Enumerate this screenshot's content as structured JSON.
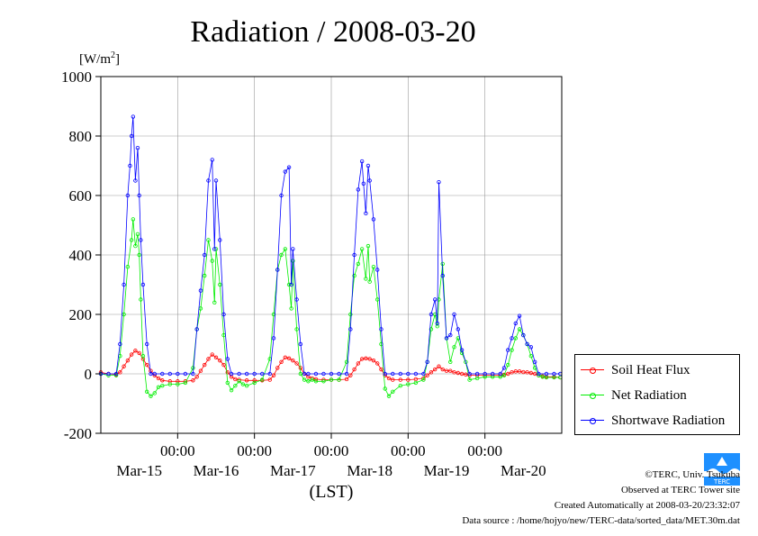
{
  "chart_data": {
    "type": "line",
    "title": "Radiation / 2008-03-20",
    "ylabel_unit": "[W/m",
    "ylabel_sup": "2",
    "ylabel_close": "]",
    "xlabel": "(LST)",
    "ylim": [
      -200,
      1000
    ],
    "yticks": [
      -200,
      0,
      200,
      400,
      600,
      800,
      1000
    ],
    "xlim": [
      0,
      6
    ],
    "xtick_positions": [
      1,
      2,
      3,
      4,
      5
    ],
    "xtick_time_label": "00:00",
    "day_labels": [
      "Mar-15",
      "Mar-16",
      "Mar-17",
      "Mar-18",
      "Mar-19",
      "Mar-20"
    ],
    "grid": true,
    "legend_placement": "right-bottom-outside",
    "series": [
      {
        "name": "Soil Heat Flux",
        "color": "#ff0000",
        "x": [
          0.0,
          0.1,
          0.2,
          0.25,
          0.3,
          0.35,
          0.4,
          0.45,
          0.5,
          0.55,
          0.6,
          0.65,
          0.7,
          0.75,
          0.8,
          0.9,
          1.0,
          1.1,
          1.2,
          1.25,
          1.3,
          1.35,
          1.4,
          1.45,
          1.5,
          1.55,
          1.6,
          1.65,
          1.7,
          1.75,
          1.8,
          1.9,
          2.0,
          2.1,
          2.2,
          2.25,
          2.3,
          2.35,
          2.4,
          2.45,
          2.5,
          2.55,
          2.6,
          2.65,
          2.7,
          2.75,
          2.8,
          2.9,
          3.0,
          3.1,
          3.2,
          3.25,
          3.3,
          3.35,
          3.4,
          3.45,
          3.5,
          3.55,
          3.6,
          3.65,
          3.7,
          3.75,
          3.8,
          3.9,
          4.0,
          4.1,
          4.2,
          4.25,
          4.3,
          4.35,
          4.4,
          4.45,
          4.5,
          4.55,
          4.6,
          4.65,
          4.7,
          4.75,
          4.8,
          4.9,
          5.0,
          5.1,
          5.2,
          5.25,
          5.3,
          5.35,
          5.4,
          5.45,
          5.5,
          5.55,
          5.6,
          5.65,
          5.7,
          5.75,
          5.8,
          5.9,
          5.98
        ],
        "y": [
          5,
          0,
          -2,
          5,
          25,
          45,
          65,
          78,
          70,
          50,
          30,
          10,
          -5,
          -15,
          -22,
          -25,
          -25,
          -25,
          -22,
          -10,
          10,
          30,
          50,
          65,
          55,
          45,
          30,
          5,
          -10,
          -18,
          -20,
          -22,
          -22,
          -22,
          -20,
          -5,
          20,
          40,
          55,
          52,
          45,
          35,
          20,
          0,
          -10,
          -15,
          -18,
          -20,
          -20,
          -20,
          -18,
          -5,
          15,
          35,
          50,
          52,
          50,
          45,
          35,
          15,
          -5,
          -15,
          -20,
          -20,
          -20,
          -18,
          -15,
          -5,
          5,
          15,
          25,
          15,
          10,
          10,
          5,
          3,
          0,
          -2,
          -5,
          -5,
          -5,
          -5,
          -5,
          -3,
          0,
          5,
          8,
          8,
          6,
          5,
          3,
          0,
          -5,
          -8,
          -10,
          -10,
          -12
        ]
      },
      {
        "name": "Net Radiation",
        "color": "#00ee00",
        "x": [
          0.0,
          0.1,
          0.2,
          0.25,
          0.3,
          0.35,
          0.4,
          0.42,
          0.45,
          0.48,
          0.5,
          0.52,
          0.55,
          0.6,
          0.65,
          0.7,
          0.75,
          0.8,
          0.9,
          1.0,
          1.1,
          1.2,
          1.25,
          1.3,
          1.35,
          1.4,
          1.45,
          1.48,
          1.5,
          1.55,
          1.6,
          1.65,
          1.7,
          1.75,
          1.8,
          1.85,
          1.9,
          2.0,
          2.1,
          2.2,
          2.25,
          2.3,
          2.35,
          2.4,
          2.45,
          2.48,
          2.5,
          2.55,
          2.6,
          2.65,
          2.7,
          2.75,
          2.8,
          2.9,
          3.0,
          3.1,
          3.2,
          3.25,
          3.3,
          3.35,
          3.4,
          3.45,
          3.48,
          3.5,
          3.55,
          3.6,
          3.65,
          3.7,
          3.75,
          3.8,
          3.9,
          4.0,
          4.1,
          4.2,
          4.25,
          4.3,
          4.35,
          4.38,
          4.4,
          4.45,
          4.5,
          4.55,
          4.6,
          4.65,
          4.7,
          4.75,
          4.8,
          4.9,
          5.0,
          5.1,
          5.2,
          5.25,
          5.3,
          5.35,
          5.4,
          5.45,
          5.5,
          5.55,
          5.6,
          5.65,
          5.7,
          5.75,
          5.8,
          5.9,
          5.98
        ],
        "y": [
          0,
          -5,
          -5,
          60,
          200,
          360,
          450,
          520,
          430,
          470,
          400,
          250,
          60,
          -60,
          -75,
          -65,
          -45,
          -40,
          -35,
          -35,
          -30,
          20,
          150,
          220,
          330,
          450,
          380,
          240,
          420,
          300,
          130,
          -30,
          -55,
          -40,
          -25,
          -35,
          -40,
          -30,
          -20,
          50,
          200,
          350,
          400,
          420,
          300,
          220,
          380,
          150,
          0,
          -20,
          -25,
          -20,
          -25,
          -25,
          -20,
          -20,
          40,
          200,
          330,
          370,
          420,
          320,
          430,
          310,
          360,
          250,
          100,
          -50,
          -75,
          -60,
          -40,
          -35,
          -30,
          -20,
          40,
          150,
          200,
          160,
          250,
          370,
          120,
          40,
          90,
          120,
          70,
          40,
          -20,
          -15,
          -10,
          -10,
          -10,
          -5,
          30,
          80,
          120,
          150,
          130,
          100,
          60,
          20,
          -5,
          -10,
          -12,
          -12,
          -12
        ]
      },
      {
        "name": "Shortwave Radiation",
        "color": "#0000ff",
        "x": [
          0.0,
          0.1,
          0.2,
          0.25,
          0.3,
          0.35,
          0.38,
          0.4,
          0.42,
          0.45,
          0.48,
          0.5,
          0.52,
          0.55,
          0.6,
          0.65,
          0.7,
          0.8,
          0.9,
          1.0,
          1.1,
          1.2,
          1.25,
          1.3,
          1.35,
          1.4,
          1.45,
          1.48,
          1.5,
          1.55,
          1.6,
          1.65,
          1.7,
          1.8,
          1.9,
          2.0,
          2.1,
          2.2,
          2.25,
          2.3,
          2.35,
          2.4,
          2.45,
          2.48,
          2.5,
          2.55,
          2.6,
          2.65,
          2.7,
          2.8,
          2.9,
          3.0,
          3.1,
          3.2,
          3.25,
          3.3,
          3.35,
          3.4,
          3.42,
          3.45,
          3.48,
          3.5,
          3.55,
          3.6,
          3.65,
          3.7,
          3.8,
          3.9,
          4.0,
          4.1,
          4.2,
          4.25,
          4.3,
          4.35,
          4.38,
          4.4,
          4.45,
          4.5,
          4.55,
          4.6,
          4.65,
          4.7,
          4.8,
          4.9,
          5.0,
          5.1,
          5.2,
          5.25,
          5.3,
          5.35,
          5.4,
          5.45,
          5.5,
          5.55,
          5.6,
          5.65,
          5.7,
          5.8,
          5.9,
          5.98
        ],
        "y": [
          0,
          0,
          0,
          100,
          300,
          600,
          700,
          800,
          865,
          650,
          760,
          600,
          450,
          300,
          100,
          0,
          0,
          0,
          0,
          0,
          0,
          0,
          150,
          280,
          400,
          650,
          720,
          420,
          650,
          450,
          200,
          50,
          0,
          0,
          0,
          0,
          0,
          0,
          120,
          350,
          600,
          680,
          695,
          300,
          420,
          250,
          100,
          0,
          0,
          0,
          0,
          0,
          0,
          0,
          150,
          400,
          620,
          715,
          640,
          540,
          700,
          650,
          520,
          350,
          150,
          0,
          0,
          0,
          0,
          0,
          0,
          40,
          200,
          250,
          170,
          645,
          330,
          120,
          130,
          200,
          150,
          80,
          0,
          0,
          0,
          0,
          0,
          20,
          80,
          120,
          170,
          195,
          130,
          100,
          90,
          40,
          0,
          0,
          0,
          0
        ]
      }
    ]
  },
  "footer": {
    "copyright": "©TERC, Univ. Tsukuba",
    "observed": "Observed at TERC Tower site",
    "created": "Created Automatically at 2008-03-20/23:32:07",
    "source": "Data source : /home/hojyo/new/TERC-data/sorted_data/MET.30m.dat"
  },
  "logo": {
    "text": "TERC",
    "color": "#1e90ff"
  }
}
